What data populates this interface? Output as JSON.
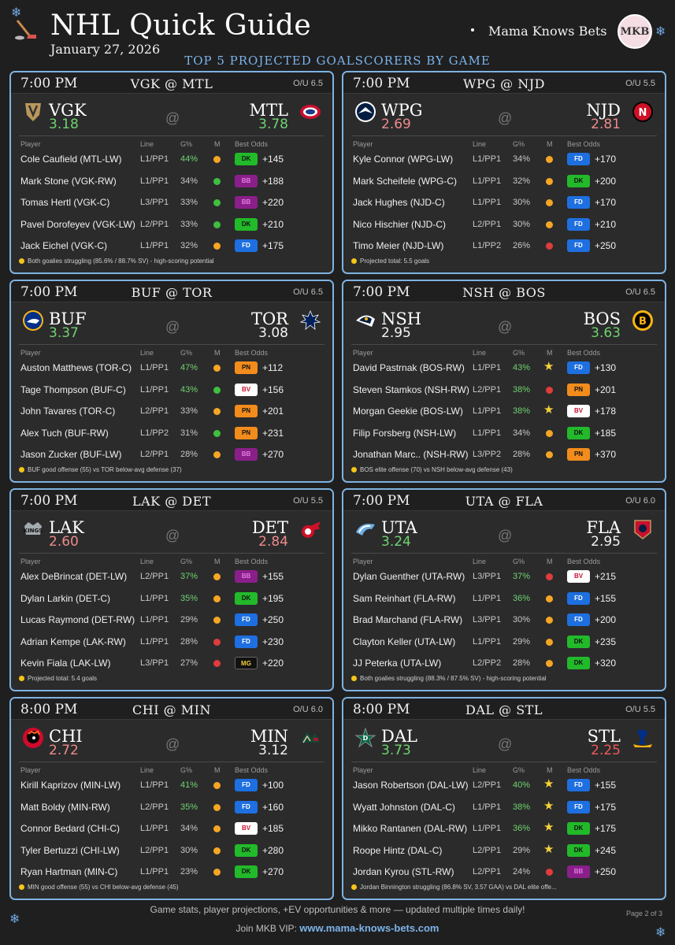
{
  "header": {
    "title": "NHL Quick Guide",
    "date": "January 27, 2026",
    "brand": "Mama Knows Bets",
    "logo_text": "MKB",
    "subtitle": "TOP 5 PROJECTED GOALSCORERS BY GAME"
  },
  "table_headers": {
    "player": "Player",
    "line": "Line",
    "g": "G%",
    "m": "M",
    "odds": "Best Odds"
  },
  "at_symbol": "@",
  "colors": {
    "accent": "#7fb2e0",
    "green": "#6fd36f",
    "red": "#ee6b6b",
    "marker_orange": "#f5a623",
    "marker_green": "#3fbf3f",
    "marker_red": "#e03c3c",
    "star": "#f5d13a",
    "FD": "#1e6fe0",
    "DK": "#22b92a",
    "PN": "#f28c1c",
    "BV": "#ffffff",
    "BB": "#8a1f8a",
    "MG": "#111111"
  },
  "games": [
    {
      "time": "7:00 PM",
      "matchup": "VGK @ MTL",
      "ou": "O/U 6.5",
      "away": {
        "abbr": "VGK",
        "proj": "3.18",
        "proj_color": "#6fd36f",
        "icon": "vgk-logo-icon"
      },
      "home": {
        "abbr": "MTL",
        "proj": "3.78",
        "proj_color": "#6fd36f",
        "icon": "mtl-logo-icon"
      },
      "players": [
        {
          "name": "Cole Caufield (MTL-LW)",
          "line": "L1/PP1",
          "g": "44%",
          "g_color": "#6fd36f",
          "m": "orange",
          "book": "DK",
          "odds": "+145"
        },
        {
          "name": "Mark Stone (VGK-RW)",
          "line": "L1/PP1",
          "g": "34%",
          "g_color": "#c8c8c8",
          "m": "green",
          "book": "BB",
          "odds": "+188"
        },
        {
          "name": "Tomas Hertl (VGK-C)",
          "line": "L3/PP1",
          "g": "33%",
          "g_color": "#c8c8c8",
          "m": "green",
          "book": "BB",
          "odds": "+220"
        },
        {
          "name": "Pavel Dorofeyev (VGK-LW)",
          "line": "L2/PP1",
          "g": "33%",
          "g_color": "#c8c8c8",
          "m": "green",
          "book": "DK",
          "odds": "+210"
        },
        {
          "name": "Jack Eichel (VGK-C)",
          "line": "L1/PP1",
          "g": "32%",
          "g_color": "#c8c8c8",
          "m": "orange",
          "book": "FD",
          "odds": "+175"
        }
      ],
      "note": "Both goalies struggling (85.6% / 88.7% SV) - high-scoring potential"
    },
    {
      "time": "7:00 PM",
      "matchup": "WPG @ NJD",
      "ou": "O/U 5.5",
      "away": {
        "abbr": "WPG",
        "proj": "2.69",
        "proj_color": "#ee8a8a",
        "icon": "wpg-logo-icon"
      },
      "home": {
        "abbr": "NJD",
        "proj": "2.81",
        "proj_color": "#ee8a8a",
        "icon": "njd-logo-icon"
      },
      "players": [
        {
          "name": "Kyle Connor (WPG-LW)",
          "line": "L1/PP1",
          "g": "34%",
          "g_color": "#c8c8c8",
          "m": "orange",
          "book": "FD",
          "odds": "+170"
        },
        {
          "name": "Mark Scheifele (WPG-C)",
          "line": "L1/PP1",
          "g": "32%",
          "g_color": "#c8c8c8",
          "m": "orange",
          "book": "DK",
          "odds": "+200"
        },
        {
          "name": "Jack Hughes (NJD-C)",
          "line": "L1/PP1",
          "g": "30%",
          "g_color": "#c8c8c8",
          "m": "orange",
          "book": "FD",
          "odds": "+170"
        },
        {
          "name": "Nico Hischier (NJD-C)",
          "line": "L2/PP1",
          "g": "30%",
          "g_color": "#c8c8c8",
          "m": "orange",
          "book": "FD",
          "odds": "+210"
        },
        {
          "name": "Timo Meier (NJD-LW)",
          "line": "L1/PP2",
          "g": "26%",
          "g_color": "#c8c8c8",
          "m": "red",
          "book": "FD",
          "odds": "+250"
        }
      ],
      "note": "Projected total: 5.5 goals"
    },
    {
      "time": "7:00 PM",
      "matchup": "BUF @ TOR",
      "ou": "O/U 6.5",
      "away": {
        "abbr": "BUF",
        "proj": "3.37",
        "proj_color": "#6fd36f",
        "icon": "buf-logo-icon"
      },
      "home": {
        "abbr": "TOR",
        "proj": "3.08",
        "proj_color": "#f2f2f2",
        "icon": "tor-logo-icon"
      },
      "players": [
        {
          "name": "Auston Matthews (TOR-C)",
          "line": "L1/PP1",
          "g": "47%",
          "g_color": "#6fd36f",
          "m": "orange",
          "book": "PN",
          "odds": "+112"
        },
        {
          "name": "Tage Thompson (BUF-C)",
          "line": "L1/PP1",
          "g": "43%",
          "g_color": "#6fd36f",
          "m": "green",
          "book": "BV",
          "odds": "+156"
        },
        {
          "name": "John Tavares (TOR-C)",
          "line": "L2/PP1",
          "g": "33%",
          "g_color": "#c8c8c8",
          "m": "orange",
          "book": "PN",
          "odds": "+201"
        },
        {
          "name": "Alex Tuch (BUF-RW)",
          "line": "L1/PP2",
          "g": "31%",
          "g_color": "#c8c8c8",
          "m": "green",
          "book": "PN",
          "odds": "+231"
        },
        {
          "name": "Jason Zucker (BUF-LW)",
          "line": "L2/PP1",
          "g": "28%",
          "g_color": "#c8c8c8",
          "m": "orange",
          "book": "BB",
          "odds": "+270"
        }
      ],
      "note": "BUF good offense (55) vs TOR below-avg defense (37)"
    },
    {
      "time": "7:00 PM",
      "matchup": "NSH @ BOS",
      "ou": "O/U 6.5",
      "away": {
        "abbr": "NSH",
        "proj": "2.95",
        "proj_color": "#f2f2f2",
        "icon": "nsh-logo-icon"
      },
      "home": {
        "abbr": "BOS",
        "proj": "3.63",
        "proj_color": "#6fd36f",
        "icon": "bos-logo-icon"
      },
      "players": [
        {
          "name": "David Pastrnak (BOS-RW)",
          "line": "L1/PP1",
          "g": "43%",
          "g_color": "#6fd36f",
          "m": "star",
          "book": "FD",
          "odds": "+130"
        },
        {
          "name": "Steven Stamkos (NSH-RW)",
          "line": "L2/PP1",
          "g": "38%",
          "g_color": "#6fd36f",
          "m": "red",
          "book": "PN",
          "odds": "+201"
        },
        {
          "name": "Morgan Geekie (BOS-LW)",
          "line": "L1/PP1",
          "g": "38%",
          "g_color": "#6fd36f",
          "m": "star",
          "book": "BV",
          "odds": "+178"
        },
        {
          "name": "Filip Forsberg (NSH-LW)",
          "line": "L1/PP1",
          "g": "34%",
          "g_color": "#c8c8c8",
          "m": "orange",
          "book": "DK",
          "odds": "+185"
        },
        {
          "name": "Jonathan Marc.. (NSH-RW)",
          "line": "L3/PP2",
          "g": "28%",
          "g_color": "#c8c8c8",
          "m": "orange",
          "book": "PN",
          "odds": "+370"
        }
      ],
      "note": "BOS elite offense (70) vs NSH below-avg defense (43)"
    },
    {
      "time": "7:00 PM",
      "matchup": "LAK @ DET",
      "ou": "O/U 5.5",
      "away": {
        "abbr": "LAK",
        "proj": "2.60",
        "proj_color": "#ee8a8a",
        "icon": "lak-logo-icon"
      },
      "home": {
        "abbr": "DET",
        "proj": "2.84",
        "proj_color": "#ee8a8a",
        "icon": "det-logo-icon"
      },
      "players": [
        {
          "name": "Alex DeBrincat (DET-LW)",
          "line": "L2/PP1",
          "g": "37%",
          "g_color": "#6fd36f",
          "m": "orange",
          "book": "BB",
          "odds": "+155"
        },
        {
          "name": "Dylan Larkin (DET-C)",
          "line": "L1/PP1",
          "g": "35%",
          "g_color": "#6fd36f",
          "m": "orange",
          "book": "DK",
          "odds": "+195"
        },
        {
          "name": "Lucas Raymond (DET-RW)",
          "line": "L1/PP1",
          "g": "29%",
          "g_color": "#c8c8c8",
          "m": "orange",
          "book": "FD",
          "odds": "+250"
        },
        {
          "name": "Adrian Kempe (LAK-RW)",
          "line": "L1/PP1",
          "g": "28%",
          "g_color": "#c8c8c8",
          "m": "red",
          "book": "FD",
          "odds": "+230"
        },
        {
          "name": "Kevin Fiala (LAK-LW)",
          "line": "L3/PP1",
          "g": "27%",
          "g_color": "#c8c8c8",
          "m": "red",
          "book": "MG",
          "odds": "+220"
        }
      ],
      "note": "Projected total: 5.4 goals"
    },
    {
      "time": "7:00 PM",
      "matchup": "UTA @ FLA",
      "ou": "O/U 6.0",
      "away": {
        "abbr": "UTA",
        "proj": "3.24",
        "proj_color": "#6fd36f",
        "icon": "uta-logo-icon"
      },
      "home": {
        "abbr": "FLA",
        "proj": "2.95",
        "proj_color": "#f2f2f2",
        "icon": "fla-logo-icon"
      },
      "players": [
        {
          "name": "Dylan Guenther (UTA-RW)",
          "line": "L3/PP1",
          "g": "37%",
          "g_color": "#6fd36f",
          "m": "red",
          "book": "BV",
          "odds": "+215"
        },
        {
          "name": "Sam Reinhart (FLA-RW)",
          "line": "L1/PP1",
          "g": "36%",
          "g_color": "#6fd36f",
          "m": "orange",
          "book": "FD",
          "odds": "+155"
        },
        {
          "name": "Brad Marchand (FLA-RW)",
          "line": "L3/PP1",
          "g": "30%",
          "g_color": "#c8c8c8",
          "m": "orange",
          "book": "FD",
          "odds": "+200"
        },
        {
          "name": "Clayton Keller (UTA-LW)",
          "line": "L1/PP1",
          "g": "29%",
          "g_color": "#c8c8c8",
          "m": "orange",
          "book": "DK",
          "odds": "+235"
        },
        {
          "name": "JJ Peterka (UTA-LW)",
          "line": "L2/PP2",
          "g": "28%",
          "g_color": "#c8c8c8",
          "m": "orange",
          "book": "DK",
          "odds": "+320"
        }
      ],
      "note": "Both goalies struggling (88.3% / 87.5% SV) - high-scoring potential"
    },
    {
      "time": "8:00 PM",
      "matchup": "CHI @ MIN",
      "ou": "O/U 6.0",
      "away": {
        "abbr": "CHI",
        "proj": "2.72",
        "proj_color": "#ee8a8a",
        "icon": "chi-logo-icon"
      },
      "home": {
        "abbr": "MIN",
        "proj": "3.12",
        "proj_color": "#f2f2f2",
        "icon": "min-logo-icon"
      },
      "players": [
        {
          "name": "Kirill Kaprizov (MIN-LW)",
          "line": "L1/PP1",
          "g": "41%",
          "g_color": "#6fd36f",
          "m": "orange",
          "book": "FD",
          "odds": "+100"
        },
        {
          "name": "Matt Boldy (MIN-RW)",
          "line": "L2/PP1",
          "g": "35%",
          "g_color": "#6fd36f",
          "m": "orange",
          "book": "FD",
          "odds": "+160"
        },
        {
          "name": "Connor Bedard (CHI-C)",
          "line": "L1/PP1",
          "g": "34%",
          "g_color": "#c8c8c8",
          "m": "orange",
          "book": "BV",
          "odds": "+185"
        },
        {
          "name": "Tyler Bertuzzi (CHI-LW)",
          "line": "L2/PP1",
          "g": "30%",
          "g_color": "#c8c8c8",
          "m": "orange",
          "book": "DK",
          "odds": "+280"
        },
        {
          "name": "Ryan Hartman (MIN-C)",
          "line": "L1/PP1",
          "g": "23%",
          "g_color": "#c8c8c8",
          "m": "orange",
          "book": "DK",
          "odds": "+270"
        }
      ],
      "note": "MIN good offense (55) vs CHI below-avg defense (45)"
    },
    {
      "time": "8:00 PM",
      "matchup": "DAL @ STL",
      "ou": "O/U 5.5",
      "away": {
        "abbr": "DAL",
        "proj": "3.73",
        "proj_color": "#6fd36f",
        "icon": "dal-logo-icon"
      },
      "home": {
        "abbr": "STL",
        "proj": "2.25",
        "proj_color": "#ee5a5a",
        "icon": "stl-logo-icon"
      },
      "players": [
        {
          "name": "Jason Robertson (DAL-LW)",
          "line": "L2/PP1",
          "g": "40%",
          "g_color": "#6fd36f",
          "m": "star",
          "book": "FD",
          "odds": "+155"
        },
        {
          "name": "Wyatt Johnston (DAL-C)",
          "line": "L1/PP1",
          "g": "38%",
          "g_color": "#6fd36f",
          "m": "star",
          "book": "FD",
          "odds": "+175"
        },
        {
          "name": "Mikko Rantanen (DAL-RW)",
          "line": "L1/PP1",
          "g": "36%",
          "g_color": "#6fd36f",
          "m": "star",
          "book": "DK",
          "odds": "+175"
        },
        {
          "name": "Roope Hintz (DAL-C)",
          "line": "L2/PP1",
          "g": "29%",
          "g_color": "#c8c8c8",
          "m": "star",
          "book": "DK",
          "odds": "+245"
        },
        {
          "name": "Jordan Kyrou (STL-RW)",
          "line": "L2/PP1",
          "g": "24%",
          "g_color": "#c8c8c8",
          "m": "red",
          "book": "BB",
          "odds": "+250"
        }
      ],
      "note": "Jordan Binnington struggling (86.8% SV, 3.57 GAA) vs DAL elite offe..."
    }
  ],
  "footer": {
    "tagline": "Game stats, player projections, +EV opportunities & more — updated multiple times daily!",
    "join_label": "Join MKB VIP:",
    "url": "www.mama-knows-bets.com",
    "page": "Page 2 of 3"
  }
}
